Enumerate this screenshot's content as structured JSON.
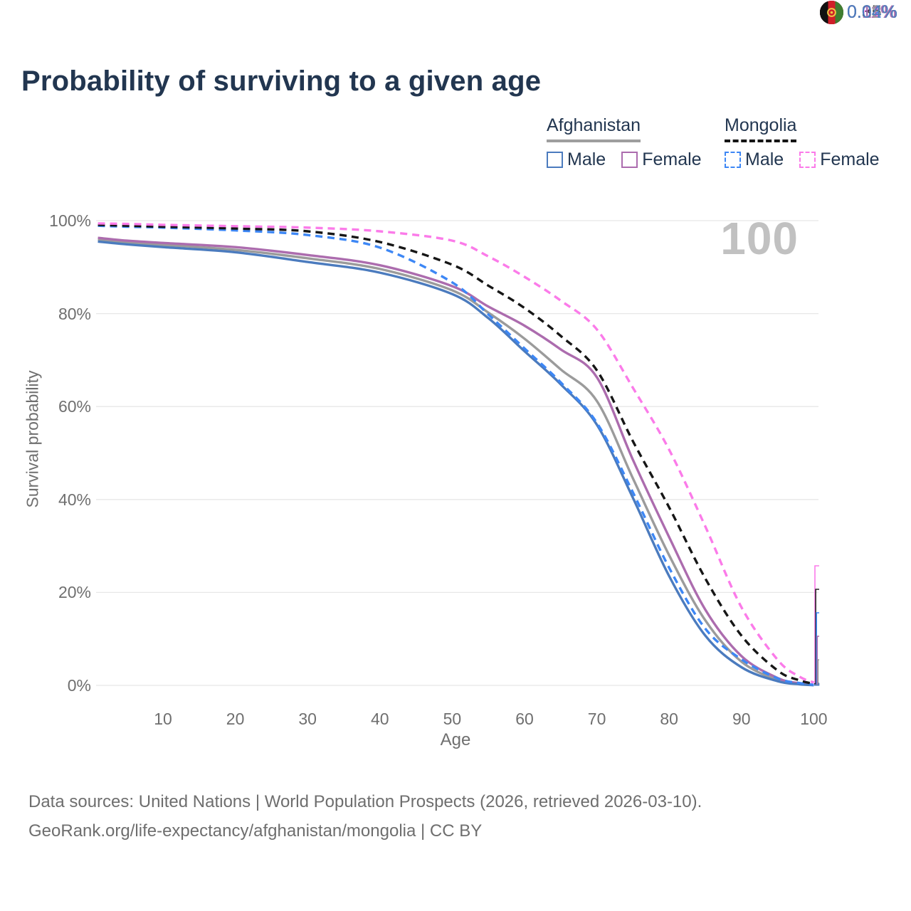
{
  "title": "Probability of surviving to a given age",
  "legend": {
    "afghanistan": {
      "label": "Afghanistan",
      "male_label": "Male",
      "female_label": "Female"
    },
    "mongolia": {
      "label": "Mongolia",
      "male_label": "Male",
      "female_label": "Female"
    }
  },
  "chart_data": {
    "type": "line",
    "title": "Probability of surviving to a given age",
    "xlabel": "Age",
    "ylabel": "Survival probability",
    "xlim": [
      1,
      103
    ],
    "ylim": [
      0,
      100
    ],
    "grid": "horizontal",
    "watermark": "100",
    "x_ticks": [
      10,
      20,
      30,
      40,
      50,
      60,
      70,
      80,
      90,
      100
    ],
    "y_ticks": [
      {
        "value": 0,
        "label": "0%"
      },
      {
        "value": 20,
        "label": "20%"
      },
      {
        "value": 40,
        "label": "40%"
      },
      {
        "value": 60,
        "label": "60%"
      },
      {
        "value": 80,
        "label": "80%"
      },
      {
        "value": 100,
        "label": "100%"
      }
    ],
    "series": [
      {
        "id": "afghanistan-both",
        "country": "Afghanistan",
        "sex": "Both",
        "color": "#9b9b9b",
        "dash": "solid",
        "ages": [
          1,
          5,
          10,
          20,
          30,
          40,
          50,
          55,
          60,
          65,
          70,
          75,
          80,
          85,
          90,
          95,
          98,
          100
        ],
        "values": [
          95.9,
          95.3,
          94.8,
          93.7,
          91.9,
          89.6,
          85.0,
          80.2,
          74.6,
          68.0,
          61.2,
          44.5,
          28.0,
          14.0,
          5.1,
          1.2,
          0.35,
          0.08
        ]
      },
      {
        "id": "afghanistan-female",
        "country": "Afghanistan",
        "sex": "Female",
        "color": "#ac6cae",
        "dash": "solid",
        "ages": [
          1,
          5,
          10,
          20,
          30,
          40,
          50,
          55,
          60,
          65,
          70,
          75,
          80,
          85,
          90,
          95,
          98,
          100
        ],
        "values": [
          96.3,
          95.7,
          95.2,
          94.3,
          92.6,
          90.4,
          85.9,
          81.5,
          77.4,
          72.3,
          66.3,
          48.5,
          31.9,
          16.3,
          6.3,
          1.6,
          0.45,
          0.11
        ]
      },
      {
        "id": "afghanistan-male",
        "country": "Afghanistan",
        "sex": "Male",
        "color": "#4b7bbe",
        "dash": "solid",
        "ages": [
          1,
          5,
          10,
          20,
          30,
          40,
          50,
          55,
          60,
          65,
          70,
          75,
          80,
          85,
          90,
          95,
          98,
          100
        ],
        "values": [
          95.5,
          94.9,
          94.3,
          93.2,
          91.1,
          88.8,
          84.2,
          79.0,
          71.9,
          64.8,
          56.1,
          40.3,
          23.5,
          10.7,
          3.9,
          0.9,
          0.25,
          0.04
        ]
      },
      {
        "id": "mongolia-male",
        "country": "Mongolia",
        "sex": "Male",
        "color": "#3d87f5",
        "dash": "dashed",
        "ages": [
          1,
          5,
          10,
          20,
          30,
          40,
          50,
          55,
          60,
          65,
          70,
          75,
          80,
          85,
          90,
          95,
          98,
          100
        ],
        "values": [
          98.9,
          98.7,
          98.5,
          97.9,
          96.9,
          94.2,
          86.7,
          79.8,
          72.5,
          65.2,
          56.5,
          41.5,
          25.3,
          12.2,
          5.6,
          1.5,
          0.5,
          0.12
        ]
      },
      {
        "id": "mongolia-both",
        "country": "Mongolia",
        "sex": "Both",
        "color": "#161616",
        "dash": "dashed",
        "ages": [
          1,
          5,
          10,
          20,
          30,
          40,
          50,
          55,
          60,
          65,
          70,
          75,
          80,
          85,
          90,
          95,
          98,
          100
        ],
        "values": [
          99.1,
          98.9,
          98.7,
          98.3,
          97.7,
          95.4,
          90.5,
          86.0,
          81.2,
          75.2,
          67.8,
          52.5,
          38.3,
          23.0,
          10.7,
          3.2,
          1.1,
          0.35
        ]
      },
      {
        "id": "mongolia-female",
        "country": "Mongolia",
        "sex": "Female",
        "color": "#fb7be9",
        "dash": "dashed",
        "ages": [
          1,
          5,
          10,
          20,
          30,
          40,
          50,
          55,
          60,
          65,
          70,
          75,
          80,
          85,
          90,
          95,
          98,
          100
        ],
        "values": [
          99.4,
          99.3,
          99.1,
          98.8,
          98.5,
          97.7,
          95.7,
          92.3,
          87.9,
          82.8,
          76.6,
          64.0,
          50.7,
          34.2,
          16.8,
          5.5,
          1.9,
          0.61
        ]
      }
    ],
    "end_labels": [
      {
        "text": "0.61%",
        "color": "#fb7be9",
        "flag": "mongolia",
        "series": "mongolia-female"
      },
      {
        "text": "0.35%",
        "color": "#222222",
        "flag": "mongolia",
        "series": "mongolia-both"
      },
      {
        "text": "0.12%",
        "color": "#3d87f5",
        "flag": "mongolia",
        "series": "mongolia-male"
      },
      {
        "text": "0.11%",
        "color": "#ac6cae",
        "flag": "afghanistan",
        "series": "afghanistan-female"
      },
      {
        "text": "0.08%",
        "color": "#9b9b9b",
        "flag": "afghanistan",
        "series": "afghanistan-both"
      },
      {
        "text": "0.04%",
        "color": "#4b7bbe",
        "flag": "afghanistan",
        "series": "afghanistan-male"
      }
    ]
  },
  "footer": {
    "line1": "Data sources: United Nations | World Population Prospects (2026, retrieved 2026-03-10).",
    "line2": "GeoRank.org/life-expectancy/afghanistan/mongolia | CC BY"
  }
}
